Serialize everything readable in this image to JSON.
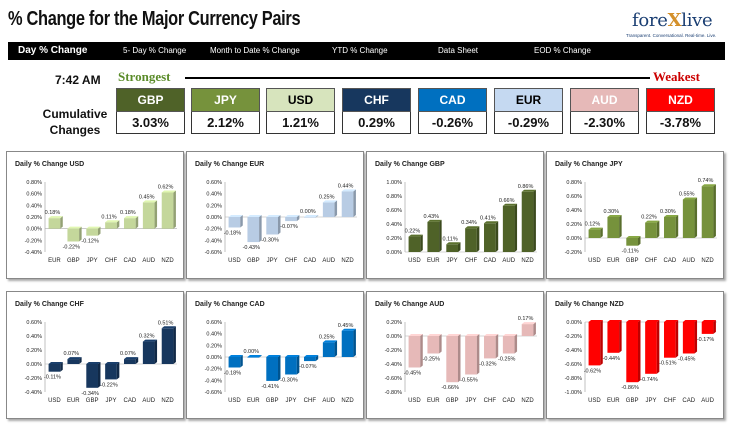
{
  "header": {
    "title": "% Change for the Major Currency Pairs",
    "logo_pre": "fore",
    "logo_x": "X",
    "logo_post": "live",
    "logo_tagline": "Transparent. Conversational. Real-time. Live."
  },
  "nav": [
    "Day % Change",
    "5- Day % Change",
    "Month to Date % Change",
    "YTD % Change",
    "Data Sheet",
    "EOD % Change"
  ],
  "summary": {
    "time": "7:42 AM",
    "strongest_label": "Strongest",
    "weakest_label": "Weakest",
    "cumulative_label_1": "Cumulative",
    "cumulative_label_2": "Changes",
    "currencies": [
      {
        "name": "GBP",
        "value": "3.03%",
        "color": "#4f6228",
        "text_color": "#ffffff"
      },
      {
        "name": "JPY",
        "value": "2.12%",
        "color": "#76923c",
        "text_color": "#ffffff"
      },
      {
        "name": "USD",
        "value": "1.21%",
        "color": "#d7e4bd",
        "text_color": "#000000"
      },
      {
        "name": "CHF",
        "value": "0.29%",
        "color": "#17375e",
        "text_color": "#ffffff"
      },
      {
        "name": "CAD",
        "value": "-0.26%",
        "color": "#0070c0",
        "text_color": "#ffffff"
      },
      {
        "name": "EUR",
        "value": "-0.29%",
        "color": "#c5d9f1",
        "text_color": "#000000"
      },
      {
        "name": "AUD",
        "value": "-2.30%",
        "color": "#e6b9b8",
        "text_color": "#ffffff"
      },
      {
        "name": "NZD",
        "value": "-3.78%",
        "color": "#ff0000",
        "text_color": "#ffffff"
      }
    ]
  },
  "chart_data": [
    {
      "type": "bar",
      "title": "Daily % Change USD",
      "categories": [
        "EUR",
        "GBP",
        "JPY",
        "CHF",
        "CAD",
        "AUD",
        "NZD"
      ],
      "values": [
        0.18,
        -0.22,
        -0.12,
        0.11,
        0.18,
        0.45,
        0.62
      ],
      "labels": [
        "0.18%",
        "-0.22%",
        "-0.12%",
        "0.11%",
        "0.18%",
        "0.45%",
        "0.62%"
      ],
      "ticks": [
        "0.80%",
        "0.60%",
        "0.40%",
        "0.20%",
        "0.00%",
        "-0.20%",
        "-0.40%"
      ],
      "ylim": [
        -0.4,
        0.8
      ],
      "color": "#c4d79b"
    },
    {
      "type": "bar",
      "title": "Daily % Change EUR",
      "categories": [
        "USD",
        "GBP",
        "JPY",
        "CHF",
        "CAD",
        "AUD",
        "NZD"
      ],
      "values": [
        -0.18,
        -0.43,
        -0.3,
        -0.07,
        0.0,
        0.25,
        0.44
      ],
      "labels": [
        "-0.18%",
        "-0.43%",
        "-0.30%",
        "-0.07%",
        "0.00%",
        "0.25%",
        "0.44%"
      ],
      "ticks": [
        "0.60%",
        "0.40%",
        "0.20%",
        "0.00%",
        "-0.20%",
        "-0.40%",
        "-0.60%"
      ],
      "ylim": [
        -0.6,
        0.6
      ],
      "color": "#b8cce4"
    },
    {
      "type": "bar",
      "title": "Daily % Change GBP",
      "categories": [
        "USD",
        "EUR",
        "JPY",
        "CHF",
        "CAD",
        "AUD",
        "NZD"
      ],
      "values": [
        0.22,
        0.43,
        0.11,
        0.34,
        0.41,
        0.66,
        0.86
      ],
      "labels": [
        "0.22%",
        "0.43%",
        "0.11%",
        "0.34%",
        "0.41%",
        "0.66%",
        "0.86%"
      ],
      "ticks": [
        "1.00%",
        "0.80%",
        "0.60%",
        "0.40%",
        "0.20%",
        "0.00%"
      ],
      "ylim": [
        0,
        1.0
      ],
      "color": "#4f6228"
    },
    {
      "type": "bar",
      "title": "Daily % Change JPY",
      "categories": [
        "USD",
        "EUR",
        "GBP",
        "CHF",
        "CAD",
        "AUD",
        "NZD"
      ],
      "values": [
        0.12,
        0.3,
        -0.11,
        0.22,
        0.3,
        0.55,
        0.74
      ],
      "labels": [
        "0.12%",
        "0.30%",
        "-0.11%",
        "0.22%",
        "0.30%",
        "0.55%",
        "0.74%"
      ],
      "ticks": [
        "0.80%",
        "0.60%",
        "0.40%",
        "0.20%",
        "0.00%",
        "-0.20%"
      ],
      "ylim": [
        -0.2,
        0.8
      ],
      "color": "#76923c"
    },
    {
      "type": "bar",
      "title": "Daily % Change CHF",
      "categories": [
        "USD",
        "EUR",
        "GBP",
        "JPY",
        "CAD",
        "AUD",
        "NZD"
      ],
      "values": [
        -0.11,
        0.07,
        -0.34,
        -0.22,
        0.07,
        0.32,
        0.51
      ],
      "labels": [
        "-0.11%",
        "0.07%",
        "-0.34%",
        "-0.22%",
        "0.07%",
        "0.32%",
        "0.51%"
      ],
      "ticks": [
        "0.60%",
        "0.40%",
        "0.20%",
        "0.00%",
        "-0.20%",
        "-0.40%"
      ],
      "ylim": [
        -0.4,
        0.6
      ],
      "color": "#17375e"
    },
    {
      "type": "bar",
      "title": "Daily % Change CAD",
      "categories": [
        "USD",
        "EUR",
        "GBP",
        "JPY",
        "CHF",
        "AUD",
        "NZD"
      ],
      "values": [
        -0.18,
        0.0,
        -0.41,
        -0.3,
        -0.07,
        0.25,
        0.45
      ],
      "labels": [
        "-0.18%",
        "0.00%",
        "-0.41%",
        "-0.30%",
        "-0.07%",
        "0.25%",
        "0.45%"
      ],
      "ticks": [
        "0.60%",
        "0.40%",
        "0.20%",
        "0.00%",
        "-0.20%",
        "-0.40%",
        "-0.60%"
      ],
      "ylim": [
        -0.6,
        0.6
      ],
      "color": "#0070c0"
    },
    {
      "type": "bar",
      "title": "Daily % Change AUD",
      "categories": [
        "USD",
        "EUR",
        "GBP",
        "JPY",
        "CHF",
        "CAD",
        "NZD"
      ],
      "values": [
        -0.45,
        -0.25,
        -0.66,
        -0.55,
        -0.32,
        -0.25,
        0.17
      ],
      "labels": [
        "-0.45%",
        "-0.25%",
        "-0.66%",
        "-0.55%",
        "-0.32%",
        "-0.25%",
        "0.17%"
      ],
      "ticks": [
        "0.20%",
        "0.00%",
        "-0.20%",
        "-0.40%",
        "-0.60%",
        "-0.80%"
      ],
      "ylim": [
        -0.8,
        0.2
      ],
      "color": "#e6b9b8"
    },
    {
      "type": "bar",
      "title": "Daily % Change NZD",
      "categories": [
        "USD",
        "EUR",
        "GBP",
        "JPY",
        "CHF",
        "CAD",
        "AUD"
      ],
      "values": [
        -0.62,
        -0.44,
        -0.86,
        -0.74,
        -0.51,
        -0.45,
        -0.17
      ],
      "labels": [
        "-0.62%",
        "-0.44%",
        "-0.86%",
        "-0.74%",
        "-0.51%",
        "-0.45%",
        "-0.17%"
      ],
      "ticks": [
        "0.00%",
        "-0.20%",
        "-0.40%",
        "-0.60%",
        "-0.80%",
        "-1.00%"
      ],
      "ylim": [
        -1.0,
        0.0
      ],
      "color": "#ff0000"
    }
  ]
}
